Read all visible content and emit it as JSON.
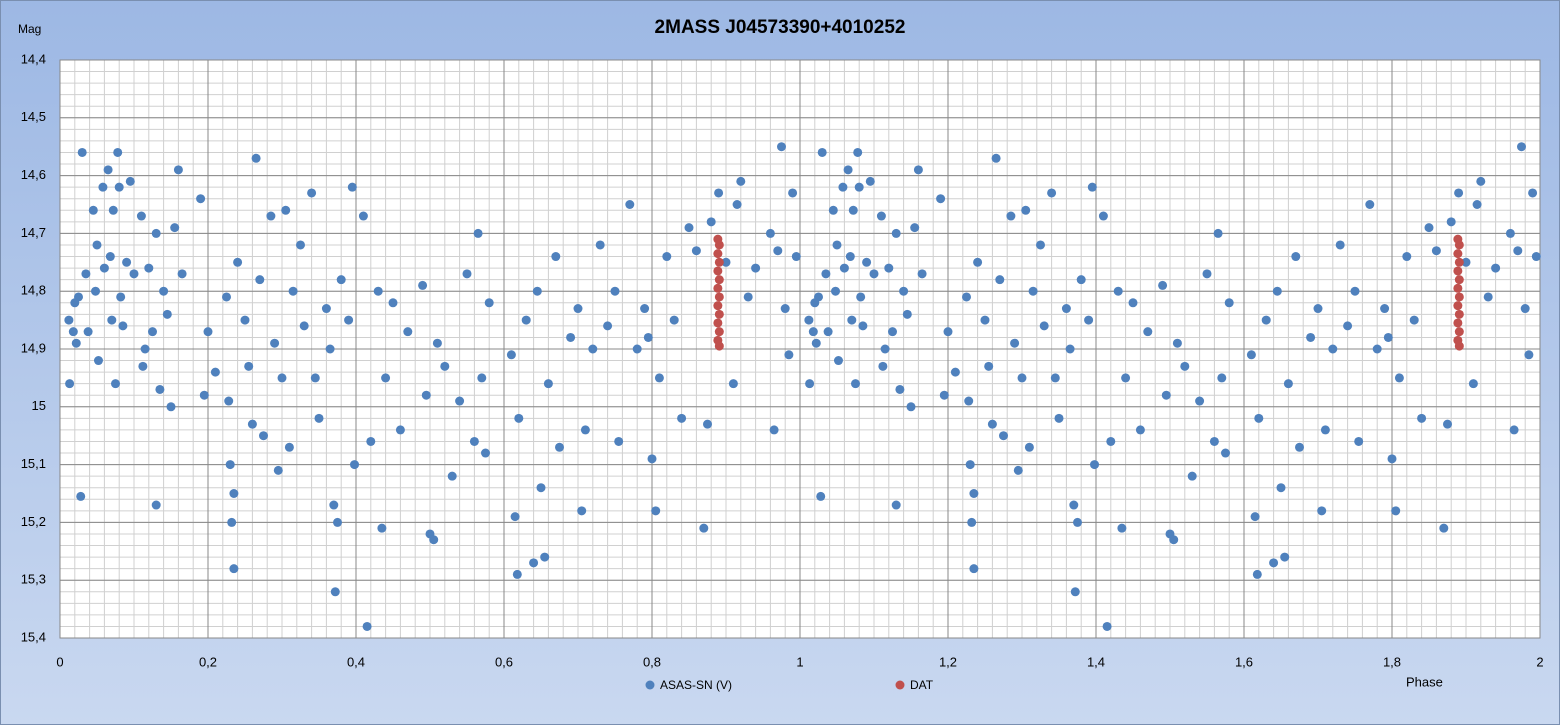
{
  "chart_data": {
    "type": "scatter",
    "title": "2MASS J04573390+4010252",
    "ylabel": "Mag",
    "xlabel": "Phase",
    "xlim": [
      0,
      2
    ],
    "ylim": [
      15.4,
      14.4
    ],
    "y_reversed": true,
    "grid": true,
    "minor_grid": {
      "x": 0.02,
      "y": 0.02
    },
    "legend": "bottom",
    "xticks": [
      0,
      {
        "value": 0.2,
        "label": "0,2"
      },
      {
        "value": 0.4,
        "label": "0,4"
      },
      {
        "value": 0.6,
        "label": "0,6"
      },
      {
        "value": 0.8,
        "label": "0,8"
      },
      1,
      {
        "value": 1.2,
        "label": "1,2"
      },
      {
        "value": 1.4,
        "label": "1,4"
      },
      {
        "value": 1.6,
        "label": "1,6"
      },
      {
        "value": 1.8,
        "label": "1,8"
      },
      2
    ],
    "yticks": [
      {
        "value": 14.4,
        "label": "14,4"
      },
      {
        "value": 14.5,
        "label": "14,5"
      },
      {
        "value": 14.6,
        "label": "14,6"
      },
      {
        "value": 14.7,
        "label": "14,7"
      },
      {
        "value": 14.8,
        "label": "14,8"
      },
      {
        "value": 14.9,
        "label": "14,9"
      },
      15,
      {
        "value": 15.1,
        "label": "15,1"
      },
      {
        "value": 15.2,
        "label": "15,2"
      },
      {
        "value": 15.3,
        "label": "15,3"
      },
      {
        "value": 15.4,
        "label": "15,4"
      }
    ],
    "series": [
      {
        "name": "ASAS-SN (V)",
        "color": "#4f81bd",
        "x": [
          0.012,
          0.013,
          0.018,
          0.02,
          0.022,
          0.025,
          0.028,
          0.03,
          0.035,
          0.038,
          0.045,
          0.048,
          0.05,
          0.052,
          0.058,
          0.06,
          0.065,
          0.068,
          0.07,
          0.072,
          0.075,
          0.078,
          0.08,
          0.082,
          0.085,
          0.09,
          0.095,
          0.1,
          0.11,
          0.112,
          0.115,
          0.12,
          0.125,
          0.13,
          0.13,
          0.135,
          0.14,
          0.145,
          0.15,
          0.155,
          0.16,
          0.165,
          0.19,
          0.195,
          0.2,
          0.21,
          0.225,
          0.228,
          0.23,
          0.232,
          0.235,
          0.235,
          0.24,
          0.25,
          0.255,
          0.26,
          0.265,
          0.27,
          0.275,
          0.285,
          0.29,
          0.295,
          0.3,
          0.305,
          0.31,
          0.315,
          0.325,
          0.33,
          0.34,
          0.345,
          0.35,
          0.36,
          0.365,
          0.37,
          0.372,
          0.375,
          0.38,
          0.39,
          0.395,
          0.398,
          0.41,
          0.415,
          0.42,
          0.43,
          0.435,
          0.44,
          0.45,
          0.46,
          0.47,
          0.49,
          0.495,
          0.5,
          0.505,
          0.51,
          0.52,
          0.53,
          0.54,
          0.55,
          0.56,
          0.565,
          0.57,
          0.575,
          0.58,
          0.61,
          0.615,
          0.618,
          0.62,
          0.63,
          0.64,
          0.645,
          0.65,
          0.655,
          0.66,
          0.67,
          0.675,
          0.69,
          0.7,
          0.705,
          0.71,
          0.72,
          0.73,
          0.74,
          0.75,
          0.755,
          0.77,
          0.78,
          0.79,
          0.795,
          0.8,
          0.805,
          0.81,
          0.82,
          0.83,
          0.84,
          0.85,
          0.86,
          0.87,
          0.875,
          0.88,
          0.89,
          0.9,
          0.91,
          0.915,
          0.92,
          0.93,
          0.94,
          0.96,
          0.965,
          0.97,
          0.975,
          0.98,
          0.985,
          0.99,
          0.995,
          1.012,
          1.013,
          1.018,
          1.02,
          1.022,
          1.025,
          1.028,
          1.03,
          1.035,
          1.038,
          1.045,
          1.048,
          1.05,
          1.052,
          1.058,
          1.06,
          1.065,
          1.068,
          1.07,
          1.072,
          1.075,
          1.078,
          1.08,
          1.082,
          1.085,
          1.09,
          1.095,
          1.1,
          1.11,
          1.112,
          1.115,
          1.12,
          1.125,
          1.13,
          1.13,
          1.135,
          1.14,
          1.145,
          1.15,
          1.155,
          1.16,
          1.165,
          1.19,
          1.195,
          1.2,
          1.21,
          1.225,
          1.228,
          1.23,
          1.232,
          1.235,
          1.235,
          1.24,
          1.25,
          1.255,
          1.26,
          1.265,
          1.27,
          1.275,
          1.285,
          1.29,
          1.295,
          1.3,
          1.305,
          1.31,
          1.315,
          1.325,
          1.33,
          1.34,
          1.345,
          1.35,
          1.36,
          1.365,
          1.37,
          1.372,
          1.375,
          1.38,
          1.39,
          1.395,
          1.398,
          1.41,
          1.415,
          1.42,
          1.43,
          1.435,
          1.44,
          1.45,
          1.46,
          1.47,
          1.49,
          1.495,
          1.5,
          1.505,
          1.51,
          1.52,
          1.53,
          1.54,
          1.55,
          1.56,
          1.565,
          1.57,
          1.575,
          1.58,
          1.61,
          1.615,
          1.618,
          1.62,
          1.63,
          1.64,
          1.645,
          1.65,
          1.655,
          1.66,
          1.67,
          1.675,
          1.69,
          1.7,
          1.705,
          1.71,
          1.72,
          1.73,
          1.74,
          1.75,
          1.755,
          1.77,
          1.78,
          1.79,
          1.795,
          1.8,
          1.805,
          1.81,
          1.82,
          1.83,
          1.84,
          1.85,
          1.86,
          1.87,
          1.875,
          1.88,
          1.89,
          1.9,
          1.91,
          1.915,
          1.92,
          1.93,
          1.94,
          1.96,
          1.965,
          1.97,
          1.975,
          1.98,
          1.985,
          1.99,
          1.995
        ],
        "values": [
          14.85,
          14.96,
          14.87,
          14.82,
          14.89,
          14.81,
          15.155,
          14.56,
          14.77,
          14.87,
          14.66,
          14.8,
          14.72,
          14.92,
          14.62,
          14.76,
          14.59,
          14.74,
          14.85,
          14.66,
          14.96,
          14.56,
          14.62,
          14.81,
          14.86,
          14.75,
          14.61,
          14.77,
          14.67,
          14.93,
          14.9,
          14.76,
          14.87,
          15.17,
          14.7,
          14.97,
          14.8,
          14.84,
          15.0,
          14.69,
          14.59,
          14.77,
          14.64,
          14.98,
          14.87,
          14.94,
          14.81,
          14.99,
          15.1,
          15.2,
          15.28,
          15.15,
          14.75,
          14.85,
          14.93,
          15.03,
          14.57,
          14.78,
          15.05,
          14.67,
          14.89,
          15.11,
          14.95,
          14.66,
          15.07,
          14.8,
          14.72,
          14.86,
          14.63,
          14.95,
          15.02,
          14.83,
          14.9,
          15.17,
          15.32,
          15.2,
          14.78,
          14.85,
          14.62,
          15.1,
          14.67,
          15.38,
          15.06,
          14.8,
          15.21,
          14.95,
          14.82,
          15.04,
          14.87,
          14.79,
          14.98,
          15.22,
          15.23,
          14.89,
          14.93,
          15.12,
          14.99,
          14.77,
          15.06,
          14.7,
          14.95,
          15.08,
          14.82,
          14.91,
          15.19,
          15.29,
          15.02,
          14.85,
          15.27,
          14.8,
          15.14,
          15.26,
          14.96,
          14.74,
          15.07,
          14.88,
          14.83,
          15.18,
          15.04,
          14.9,
          14.72,
          14.86,
          14.8,
          15.06,
          14.65,
          14.9,
          14.83,
          14.88,
          15.09,
          15.18,
          14.95,
          14.74,
          14.85,
          15.02,
          14.69,
          14.73,
          15.21,
          15.03,
          14.68,
          14.63,
          14.75,
          14.96,
          14.65,
          14.61,
          14.81,
          14.76,
          14.7,
          15.04,
          14.73,
          14.55,
          14.83,
          14.91,
          14.63,
          14.74,
          14.85,
          14.96,
          14.87,
          14.82,
          14.89,
          14.81,
          15.155,
          14.56,
          14.77,
          14.87,
          14.66,
          14.8,
          14.72,
          14.92,
          14.62,
          14.76,
          14.59,
          14.74,
          14.85,
          14.66,
          14.96,
          14.56,
          14.62,
          14.81,
          14.86,
          14.75,
          14.61,
          14.77,
          14.67,
          14.93,
          14.9,
          14.76,
          14.87,
          15.17,
          14.7,
          14.97,
          14.8,
          14.84,
          15.0,
          14.69,
          14.59,
          14.77,
          14.64,
          14.98,
          14.87,
          14.94,
          14.81,
          14.99,
          15.1,
          15.2,
          15.28,
          15.15,
          14.75,
          14.85,
          14.93,
          15.03,
          14.57,
          14.78,
          15.05,
          14.67,
          14.89,
          15.11,
          14.95,
          14.66,
          15.07,
          14.8,
          14.72,
          14.86,
          14.63,
          14.95,
          15.02,
          14.83,
          14.9,
          15.17,
          15.32,
          15.2,
          14.78,
          14.85,
          14.62,
          15.1,
          14.67,
          15.38,
          15.06,
          14.8,
          15.21,
          14.95,
          14.82,
          15.04,
          14.87,
          14.79,
          14.98,
          15.22,
          15.23,
          14.89,
          14.93,
          15.12,
          14.99,
          14.77,
          15.06,
          14.7,
          14.95,
          15.08,
          14.82,
          14.91,
          15.19,
          15.29,
          15.02,
          14.85,
          15.27,
          14.8,
          15.14,
          15.26,
          14.96,
          14.74,
          15.07,
          14.88,
          14.83,
          15.18,
          15.04,
          14.9,
          14.72,
          14.86,
          14.8,
          15.06,
          14.65,
          14.9,
          14.83,
          14.88,
          15.09,
          15.18,
          14.95,
          14.74,
          14.85,
          15.02,
          14.69,
          14.73,
          15.21,
          15.03,
          14.68,
          14.63,
          14.75,
          14.96,
          14.65,
          14.61,
          14.81,
          14.76,
          14.7,
          15.04,
          14.73,
          14.55,
          14.83,
          14.91,
          14.63,
          14.74
        ]
      },
      {
        "name": "DAT",
        "color": "#c0504d",
        "x": [
          0.889,
          0.891,
          0.889,
          0.891,
          0.889,
          0.891,
          0.889,
          0.891,
          0.889,
          0.891,
          0.889,
          0.891,
          0.889,
          0.891,
          1.889,
          1.891,
          1.889,
          1.891,
          1.889,
          1.891,
          1.889,
          1.891,
          1.889,
          1.891,
          1.889,
          1.891,
          1.889,
          1.891
        ],
        "values": [
          14.71,
          14.72,
          14.735,
          14.75,
          14.765,
          14.78,
          14.795,
          14.81,
          14.825,
          14.84,
          14.855,
          14.87,
          14.885,
          14.895,
          14.71,
          14.72,
          14.735,
          14.75,
          14.765,
          14.78,
          14.795,
          14.81,
          14.825,
          14.84,
          14.855,
          14.87,
          14.885,
          14.895
        ]
      }
    ]
  }
}
